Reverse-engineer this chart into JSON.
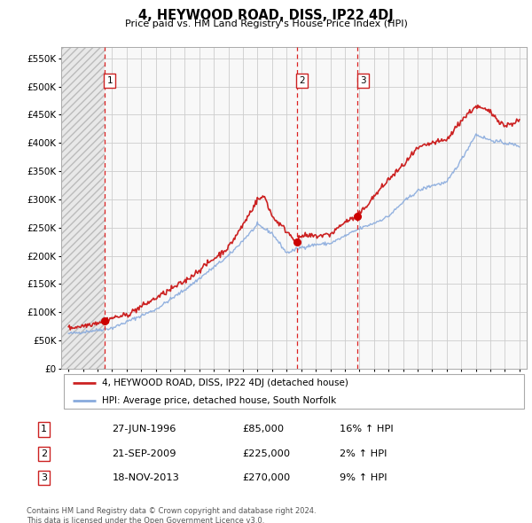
{
  "title": "4, HEYWOOD ROAD, DISS, IP22 4DJ",
  "subtitle": "Price paid vs. HM Land Registry's House Price Index (HPI)",
  "legend_line1": "4, HEYWOOD ROAD, DISS, IP22 4DJ (detached house)",
  "legend_line2": "HPI: Average price, detached house, South Norfolk",
  "transactions": [
    {
      "num": 1,
      "date": "27-JUN-1996",
      "price": 85000,
      "hpi_pct": "16% ↑ HPI",
      "year": 1996.49
    },
    {
      "num": 2,
      "date": "21-SEP-2009",
      "price": 225000,
      "hpi_pct": "2% ↑ HPI",
      "year": 2009.72
    },
    {
      "num": 3,
      "date": "18-NOV-2013",
      "price": 270000,
      "hpi_pct": "9% ↑ HPI",
      "year": 2013.88
    }
  ],
  "footer": "Contains HM Land Registry data © Crown copyright and database right 2024.\nThis data is licensed under the Open Government Licence v3.0.",
  "ylim": [
    0,
    570000
  ],
  "yticks": [
    0,
    50000,
    100000,
    150000,
    200000,
    250000,
    300000,
    350000,
    400000,
    450000,
    500000,
    550000
  ],
  "xlim_start": 1993.5,
  "xlim_end": 2025.5,
  "red_line_color": "#cc2222",
  "blue_line_color": "#88aadd",
  "grid_color": "#cccccc",
  "dashed_line_color": "#dd2222",
  "marker_color": "#cc0000",
  "bg_color": "#f8f8f8"
}
